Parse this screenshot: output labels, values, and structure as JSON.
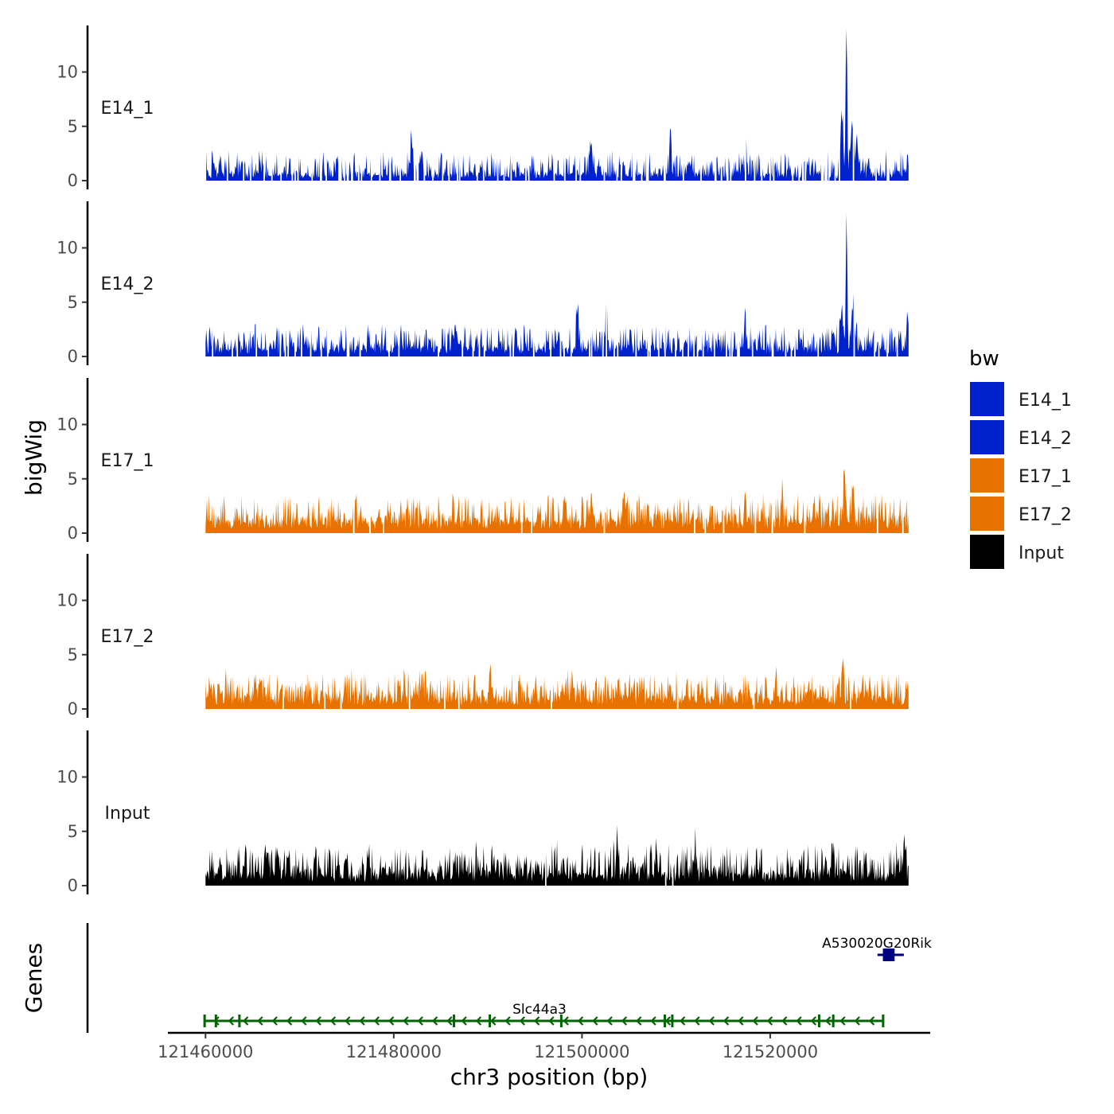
{
  "chart_data": {
    "type": "area",
    "ylabel": "bigWig",
    "xlabel": "chr3 position (bp)",
    "xlim": [
      121456000,
      121537000
    ],
    "data_range": [
      121460000,
      121534700
    ],
    "xticks": [
      121460000,
      121480000,
      121500000,
      121520000
    ],
    "xtick_labels": [
      "121460000",
      "121480000",
      "121500000",
      "121520000"
    ],
    "ylim": [
      0,
      14
    ],
    "yticks": [
      0,
      5,
      10
    ],
    "ytick_labels": [
      "0",
      "5",
      "10"
    ],
    "legend": {
      "title": "bw",
      "entries": [
        {
          "label": "E14_1",
          "color": "#0022CC"
        },
        {
          "label": "E14_2",
          "color": "#0022CC"
        },
        {
          "label": "E17_1",
          "color": "#E87200"
        },
        {
          "label": "E17_2",
          "color": "#E87200"
        },
        {
          "label": "Input",
          "color": "#000000"
        }
      ]
    },
    "series": [
      {
        "name": "E14_1",
        "color": "#0022CC",
        "baseline": 0.45,
        "noise": 0.75,
        "sparsity": 0.3,
        "peaks": [
          {
            "x": 121528100,
            "h": 13.5,
            "w": 120
          },
          {
            "x": 121527600,
            "h": 5.5,
            "w": 180
          },
          {
            "x": 121528700,
            "h": 5.0,
            "w": 200
          },
          {
            "x": 121529200,
            "h": 3.5,
            "w": 180
          },
          {
            "x": 121481900,
            "h": 3.6,
            "w": 130
          },
          {
            "x": 121500900,
            "h": 3.2,
            "w": 130
          },
          {
            "x": 121509400,
            "h": 3.1,
            "w": 130
          },
          {
            "x": 121517400,
            "h": 3.4,
            "w": 130
          }
        ]
      },
      {
        "name": "E14_2",
        "color": "#0022CC",
        "baseline": 0.55,
        "noise": 0.8,
        "sparsity": 0.22,
        "peaks": [
          {
            "x": 121528100,
            "h": 11.2,
            "w": 110
          },
          {
            "x": 121527600,
            "h": 4.0,
            "w": 160
          },
          {
            "x": 121528800,
            "h": 3.6,
            "w": 200
          },
          {
            "x": 121499500,
            "h": 3.7,
            "w": 130
          },
          {
            "x": 121502600,
            "h": 3.5,
            "w": 130
          },
          {
            "x": 121517300,
            "h": 2.8,
            "w": 130
          },
          {
            "x": 121534600,
            "h": 3.1,
            "w": 100
          }
        ]
      },
      {
        "name": "E17_1",
        "color": "#E87200",
        "baseline": 0.9,
        "noise": 0.9,
        "sparsity": 0.05,
        "peaks": [
          {
            "x": 121527900,
            "h": 4.4,
            "w": 120
          },
          {
            "x": 121528800,
            "h": 3.2,
            "w": 150
          },
          {
            "x": 121504500,
            "h": 3.2,
            "w": 130
          },
          {
            "x": 121501000,
            "h": 2.6,
            "w": 130
          },
          {
            "x": 121521300,
            "h": 2.8,
            "w": 130
          }
        ]
      },
      {
        "name": "E17_2",
        "color": "#E87200",
        "baseline": 0.8,
        "noise": 0.9,
        "sparsity": 0.05,
        "peaks": [
          {
            "x": 121527700,
            "h": 3.5,
            "w": 130
          },
          {
            "x": 121490200,
            "h": 2.9,
            "w": 130
          },
          {
            "x": 121520600,
            "h": 2.6,
            "w": 130
          },
          {
            "x": 121483000,
            "h": 2.4,
            "w": 130
          }
        ]
      },
      {
        "name": "Input",
        "color": "#000000",
        "baseline": 0.9,
        "noise": 1.0,
        "sparsity": 0.02,
        "peaks": [
          {
            "x": 121503700,
            "h": 3.5,
            "w": 100
          },
          {
            "x": 121507900,
            "h": 2.7,
            "w": 110
          },
          {
            "x": 121512000,
            "h": 2.6,
            "w": 110
          },
          {
            "x": 121526600,
            "h": 2.8,
            "w": 120
          },
          {
            "x": 121534300,
            "h": 2.8,
            "w": 110
          }
        ]
      }
    ],
    "genes": {
      "label": "Genes",
      "items": [
        {
          "name": "Slc44a3",
          "color": "#006400",
          "strand": "-",
          "start": 121459800,
          "end": 121532100,
          "exons": [
            121459900,
            121461100,
            121463600,
            121486400,
            121490200,
            121497800,
            121508800,
            121509600,
            121525200,
            121526700,
            121532000
          ]
        },
        {
          "name": "A530020G20Rik",
          "color": "#000080",
          "strand": "+",
          "start": 121531400,
          "end": 121534200,
          "exons": [
            121532100,
            121532500
          ]
        }
      ]
    }
  }
}
